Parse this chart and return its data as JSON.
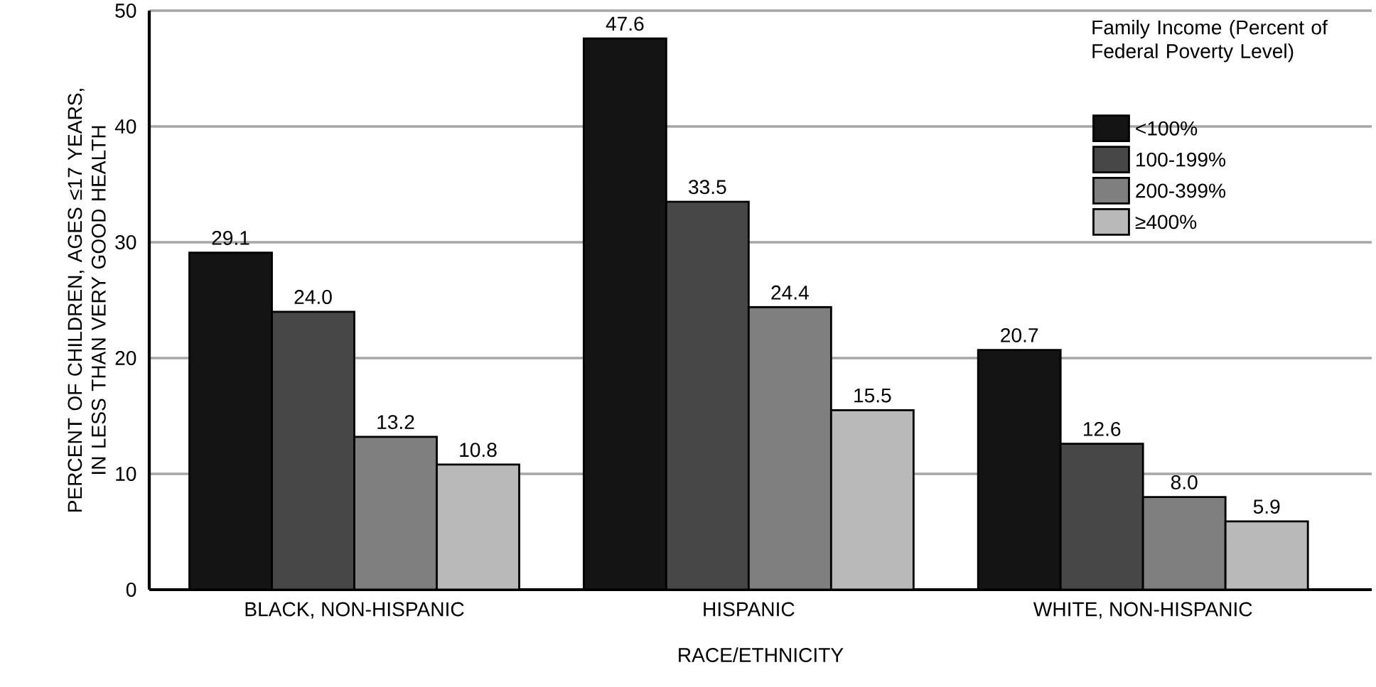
{
  "chart_data": {
    "type": "bar",
    "categories": [
      "BLACK, NON-HISPANIC",
      "HISPANIC",
      "WHITE, NON-HISPANIC"
    ],
    "xlabel": "RACE/ETHNICITY",
    "ylabel": "PERCENT OF CHILDREN, AGES ≤17 YEARS, IN LESS THAN VERY GOOD HEALTH",
    "legend_title": "Family Income (Percent of Federal Poverty Level)",
    "series": [
      {
        "name": "<100%",
        "color": "#141414",
        "values": [
          29.1,
          47.6,
          20.7
        ],
        "value_labels": [
          "29.1",
          "47.6",
          "20.7"
        ]
      },
      {
        "name": "100-199%",
        "color": "#474747",
        "values": [
          24.0,
          33.5,
          12.6
        ],
        "value_labels": [
          "24.0",
          "33.5",
          "12.6"
        ]
      },
      {
        "name": "200-399%",
        "color": "#7f7f7f",
        "values": [
          13.2,
          24.4,
          8.0
        ],
        "value_labels": [
          "13.2",
          "24.4",
          "8.0"
        ]
      },
      {
        "name": "≥400%",
        "color": "#b9b9b9",
        "values": [
          10.8,
          15.5,
          5.9
        ],
        "value_labels": [
          "10.8",
          "15.5",
          "5.9"
        ]
      }
    ],
    "ylim": [
      0,
      50
    ],
    "yticks": [
      0,
      10,
      20,
      30,
      40,
      50
    ],
    "grid": "y",
    "legend": "top right"
  }
}
